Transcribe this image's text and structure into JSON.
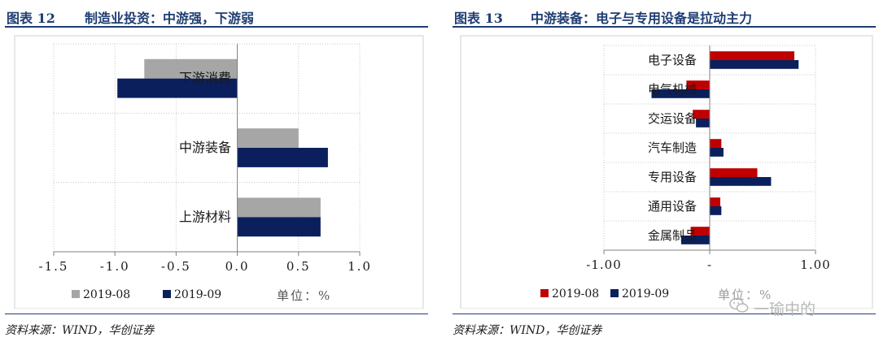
{
  "left": {
    "figure_label": "图表 12",
    "title": "制造业投资：中游强，下游弱",
    "source": "资料来源：WIND，华创证券",
    "unit": "单位：%"
  },
  "right": {
    "figure_label": "图表 13",
    "title": "中游装备：电子与专用设备是拉动主力",
    "source": "资料来源：WIND，华创证券",
    "unit": "单位：%"
  },
  "watermark": {
    "text": "一瑜中的",
    "icon": "wechat-icon"
  },
  "colors": {
    "grey": "#a6a6a6",
    "navy": "#0b1f5c",
    "red": "#c00000",
    "title": "#1f3d73"
  },
  "chart_data": [
    {
      "type": "bar",
      "orientation": "horizontal",
      "categories": [
        "下游消费",
        "中游装备",
        "上游材料"
      ],
      "series": [
        {
          "name": "2019-08",
          "color": "#a6a6a6",
          "values": [
            -0.76,
            0.5,
            0.68
          ]
        },
        {
          "name": "2019-09",
          "color": "#0b1f5c",
          "values": [
            -0.98,
            0.74,
            0.68
          ]
        }
      ],
      "xlim": [
        -1.5,
        1.0
      ],
      "xticks": [
        "-1.5",
        "-1.0",
        "-0.5",
        "0.0",
        "0.5",
        "1.0"
      ],
      "tick_values": [
        -1.5,
        -1.0,
        -0.5,
        0.0,
        0.5,
        1.0
      ],
      "grid": true,
      "legend": "bottom-left"
    },
    {
      "type": "bar",
      "orientation": "horizontal",
      "categories": [
        "电子设备",
        "电气机械",
        "交运设备",
        "汽车制造",
        "专用设备",
        "通用设备",
        "金属制品"
      ],
      "series": [
        {
          "name": "2019-08",
          "color": "#c00000",
          "values": [
            0.8,
            -0.22,
            -0.16,
            0.11,
            0.45,
            0.1,
            -0.18
          ]
        },
        {
          "name": "2019-09",
          "color": "#0b1f5c",
          "values": [
            0.84,
            -0.55,
            -0.13,
            0.13,
            0.58,
            0.11,
            -0.27
          ]
        }
      ],
      "xlim": [
        -1.0,
        1.0
      ],
      "xticks": [
        "-1.00",
        "-",
        "1.00"
      ],
      "tick_values": [
        -1.0,
        0.0,
        1.0
      ],
      "grid": true,
      "legend": "bottom-left"
    }
  ]
}
